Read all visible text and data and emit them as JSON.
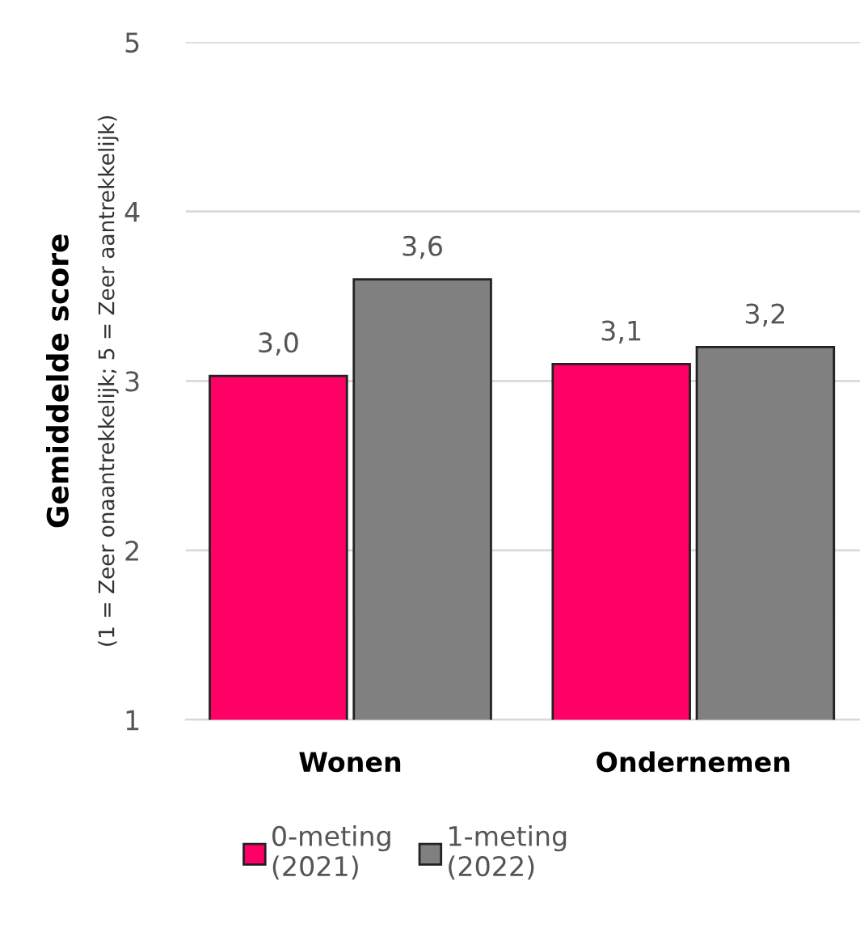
{
  "chart_data": {
    "type": "bar",
    "ylabel": "Gemiddelde score",
    "annotations": [
      "(1 = Zeer onaantrekkelijk; 5 = Zeer aantrekkelijk)"
    ],
    "categories": [
      "Wonen",
      "Ondernemen"
    ],
    "series": [
      {
        "name": "0-meting\n(2021)",
        "color": "#ff0066",
        "values": [
          3.03,
          3.1
        ],
        "value_labels": [
          "3,0",
          "3,1"
        ]
      },
      {
        "name": "1-meting\n(2022)",
        "color": "#808080",
        "values": [
          3.6,
          3.2
        ],
        "value_labels": [
          "3,6",
          "3,2"
        ]
      }
    ],
    "ylim": [
      1,
      5
    ],
    "yticks": [
      1,
      2,
      3,
      4,
      5
    ],
    "grid": "y",
    "legend": "bottom"
  }
}
